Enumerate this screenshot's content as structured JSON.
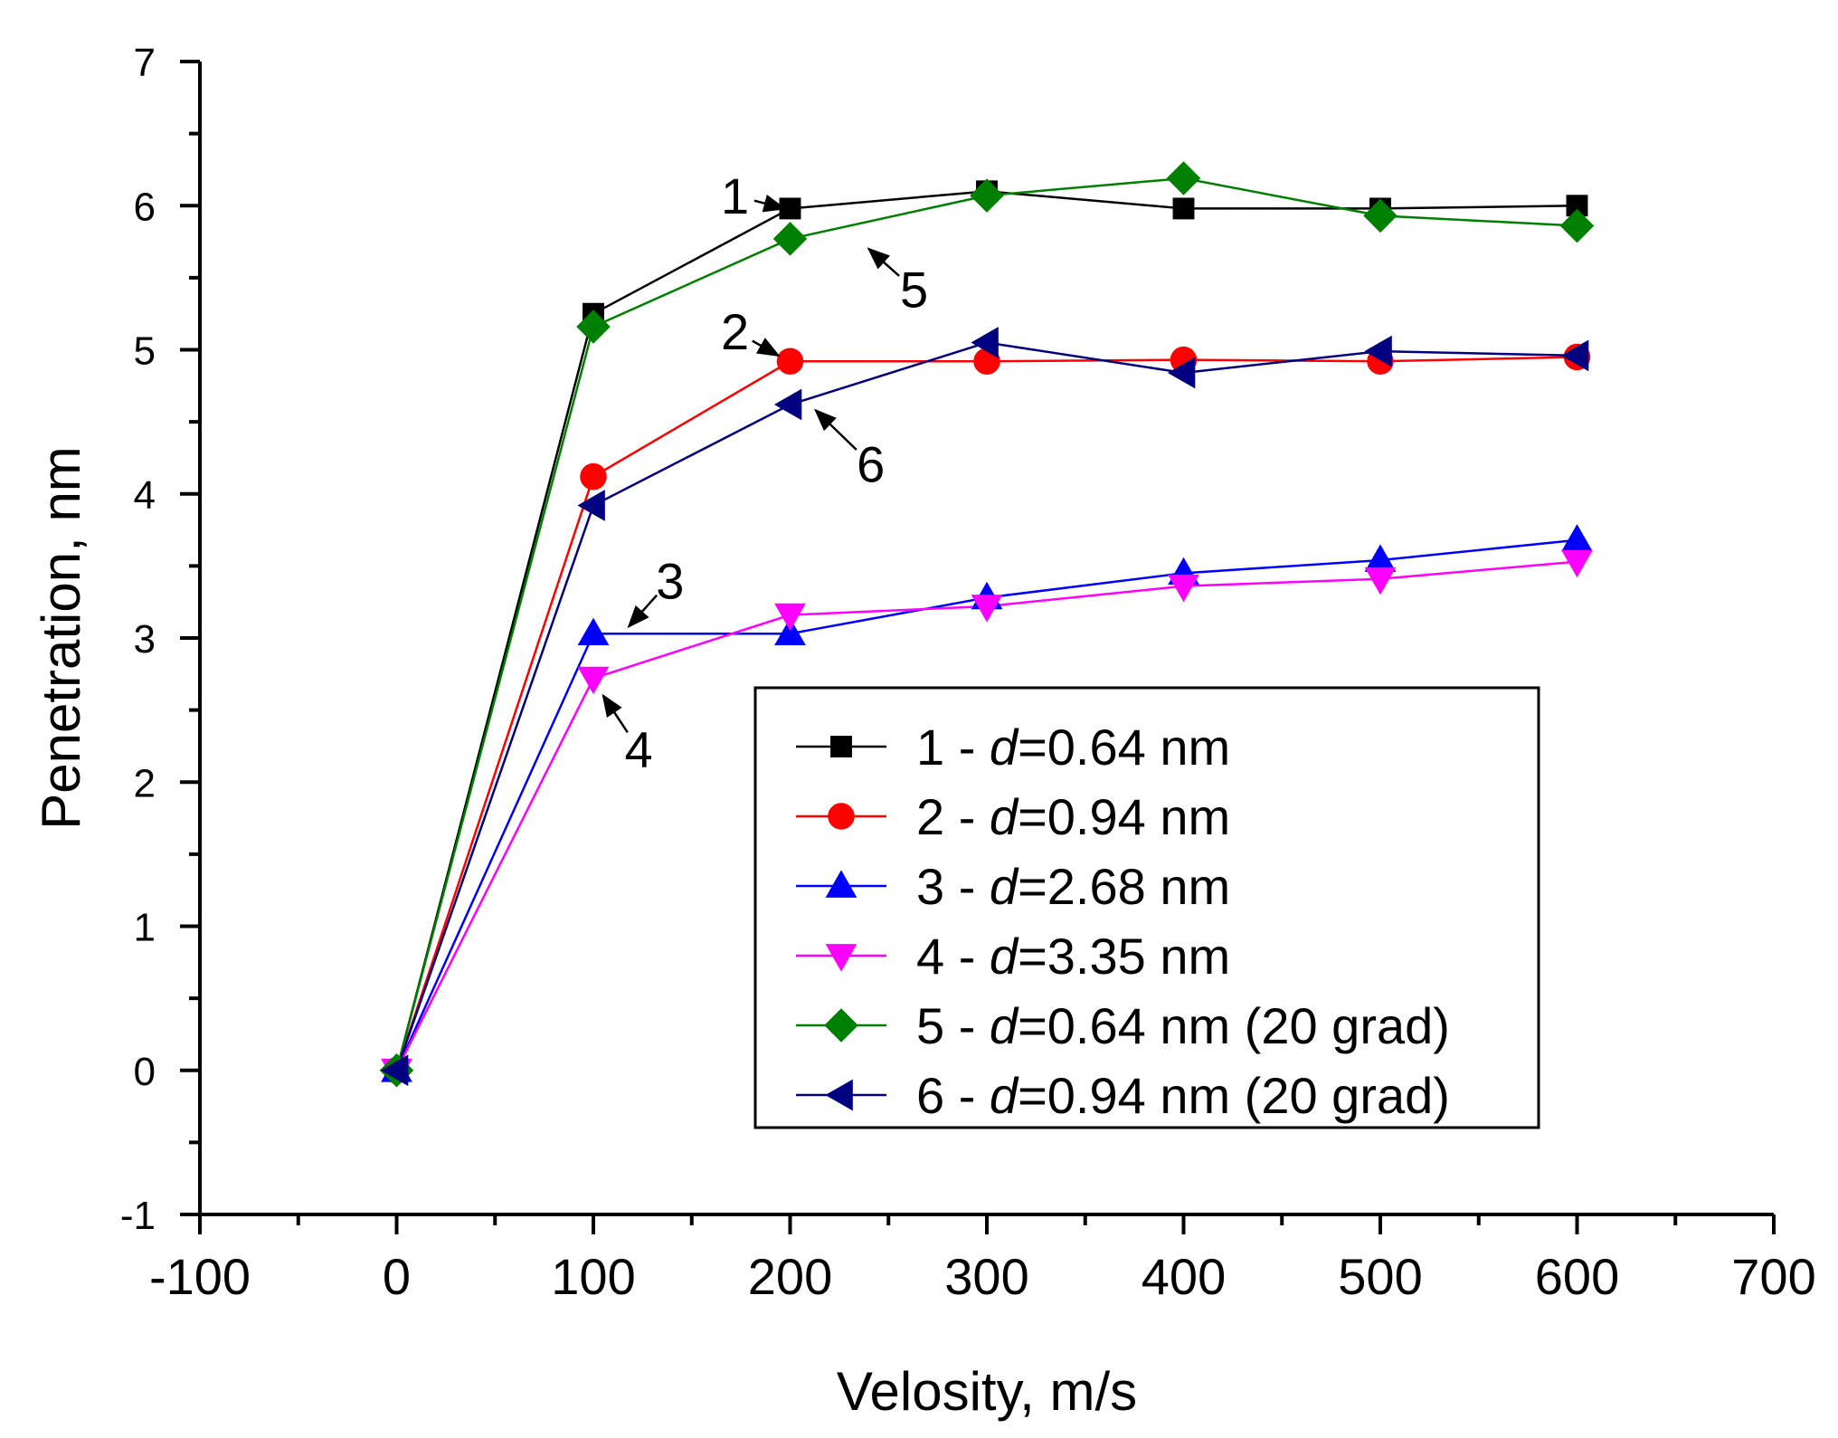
{
  "chart_data": {
    "type": "line",
    "xlabel": "Velosity, m/s",
    "ylabel": "Penetration, nm",
    "xlim": [
      -100,
      700
    ],
    "ylim": [
      -1,
      7
    ],
    "xticks": [
      -100,
      0,
      100,
      200,
      300,
      400,
      500,
      600,
      700
    ],
    "yticks": [
      -1,
      0,
      1,
      2,
      3,
      4,
      5,
      6,
      7
    ],
    "x_tick_labels": [
      "-100",
      "0",
      "100",
      "200",
      "300",
      "400",
      "500",
      "600",
      "700"
    ],
    "y_tick_labels": [
      "-1",
      "0",
      "1",
      "2",
      "3",
      "4",
      "5",
      "6",
      "7"
    ],
    "legend_position": "lower-right",
    "series": [
      {
        "name": "1",
        "prefix": "1 - ",
        "var": "d",
        "suffix": "=0.64 nm",
        "color": "#000000",
        "marker": "square",
        "x": [
          0,
          100,
          200,
          300,
          400,
          500,
          600
        ],
        "values": [
          0,
          5.25,
          5.98,
          6.1,
          5.98,
          5.98,
          6.0
        ]
      },
      {
        "name": "2",
        "prefix": "2 - ",
        "var": "d",
        "suffix": "=0.94 nm",
        "color": "#ff0000",
        "marker": "circle",
        "x": [
          0,
          100,
          200,
          300,
          400,
          500,
          600
        ],
        "values": [
          0,
          4.12,
          4.92,
          4.92,
          4.93,
          4.92,
          4.95
        ]
      },
      {
        "name": "3",
        "prefix": "3 - ",
        "var": "d",
        "suffix": "=2.68 nm",
        "color": "#0000ff",
        "marker": "triangle-up",
        "x": [
          0,
          100,
          200,
          300,
          400,
          500,
          600
        ],
        "values": [
          0,
          3.03,
          3.03,
          3.28,
          3.45,
          3.54,
          3.68
        ]
      },
      {
        "name": "4",
        "prefix": "4 - ",
        "var": "d",
        "suffix": "=3.35 nm",
        "color": "#ff00ff",
        "marker": "triangle-down",
        "x": [
          0,
          100,
          200,
          300,
          400,
          500,
          600
        ],
        "values": [
          0,
          2.72,
          3.16,
          3.22,
          3.36,
          3.41,
          3.53
        ]
      },
      {
        "name": "5",
        "prefix": "5 - ",
        "var": "d",
        "suffix": "=0.64 nm (20 grad)",
        "color": "#008000",
        "marker": "diamond",
        "x": [
          0,
          100,
          200,
          300,
          400,
          500,
          600
        ],
        "values": [
          0,
          5.16,
          5.77,
          6.07,
          6.19,
          5.93,
          5.86
        ]
      },
      {
        "name": "6",
        "prefix": "6 - ",
        "var": "d",
        "suffix": "=0.94 nm (20 grad)",
        "color": "#000080",
        "marker": "triangle-left",
        "x": [
          0,
          100,
          200,
          300,
          400,
          500,
          600
        ],
        "values": [
          0,
          3.92,
          4.62,
          5.05,
          4.84,
          4.99,
          4.96
        ]
      }
    ],
    "annotations": [
      {
        "text": "1",
        "text_xy": [
          172,
          6.07
        ],
        "target_xy": [
          197,
          5.98
        ]
      },
      {
        "text": "5",
        "text_xy": [
          263,
          5.42
        ],
        "target_xy": [
          240,
          5.7
        ]
      },
      {
        "text": "2",
        "text_xy": [
          172,
          5.13
        ],
        "target_xy": [
          194,
          4.96
        ]
      },
      {
        "text": "6",
        "text_xy": [
          241,
          4.21
        ],
        "target_xy": [
          213,
          4.58
        ]
      },
      {
        "text": "3",
        "text_xy": [
          139,
          3.4
        ],
        "target_xy": [
          118,
          3.08
        ]
      },
      {
        "text": "4",
        "text_xy": [
          123,
          2.23
        ],
        "target_xy": [
          105,
          2.6
        ]
      }
    ]
  }
}
